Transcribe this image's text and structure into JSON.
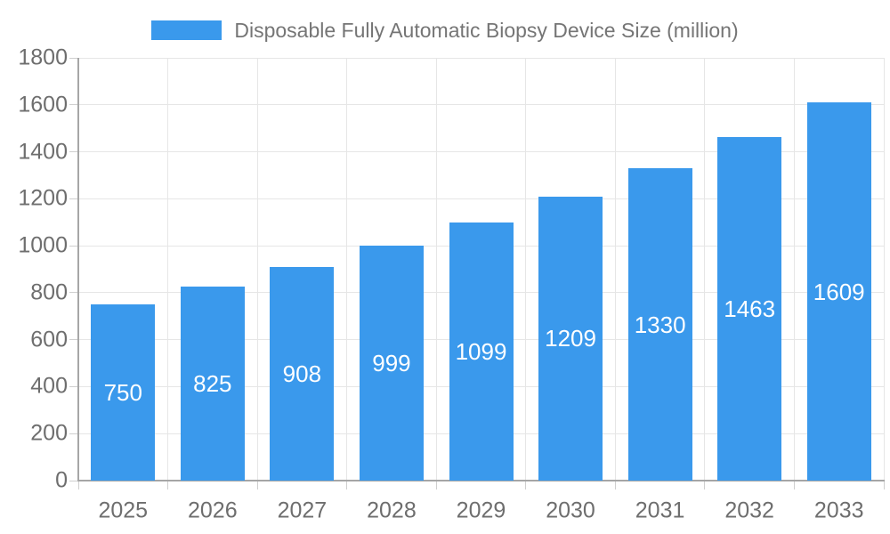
{
  "chart_data": {
    "type": "bar",
    "title": "Disposable Fully Automatic Biopsy Device Size (million)",
    "categories": [
      "2025",
      "2026",
      "2027",
      "2028",
      "2029",
      "2030",
      "2031",
      "2032",
      "2033"
    ],
    "values": [
      750,
      825,
      908,
      999,
      1099,
      1209,
      1330,
      1463,
      1609
    ],
    "xlabel": "",
    "ylabel": "",
    "ylim": [
      0,
      1800
    ],
    "ytick_step": 200,
    "yticks": [
      0,
      200,
      400,
      600,
      800,
      1000,
      1200,
      1400,
      1600,
      1800
    ],
    "grid": true,
    "legend_position": "top",
    "colors": {
      "bar": "#3a99ec",
      "bar_label": "#ffffff",
      "grid": "#e6e6e6",
      "axis": "#a6a6a6",
      "tick": "#cfcfcf",
      "axis_label": "#6e6e6e",
      "legend_text": "#757575",
      "background": "#ffffff"
    }
  }
}
